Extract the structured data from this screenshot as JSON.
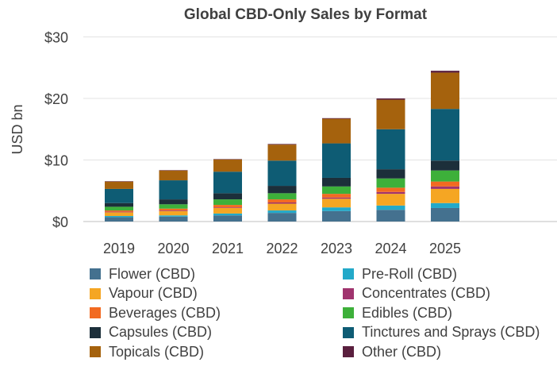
{
  "chart_data": {
    "type": "bar",
    "stacked": true,
    "title": "Global CBD-Only Sales by Format",
    "xlabel": "",
    "ylabel": "USD bn",
    "ylim": [
      0,
      30
    ],
    "yticks": [
      {
        "value": 0,
        "label": "$0"
      },
      {
        "value": 10,
        "label": "$10"
      },
      {
        "value": 20,
        "label": "$20"
      },
      {
        "value": 30,
        "label": "$30"
      }
    ],
    "grid": true,
    "legend_position": "bottom",
    "categories": [
      "2019",
      "2020",
      "2021",
      "2022",
      "2023",
      "2024",
      "2025"
    ],
    "series": [
      {
        "name": "Flower (CBD)",
        "color": "#44718f",
        "values": [
          0.7,
          0.8,
          1.0,
          1.4,
          1.7,
          1.9,
          2.2
        ]
      },
      {
        "name": "Pre-Roll (CBD)",
        "color": "#23a9c9",
        "values": [
          0.2,
          0.2,
          0.3,
          0.4,
          0.6,
          0.7,
          0.8
        ]
      },
      {
        "name": "Vapour (CBD)",
        "color": "#f5a623",
        "values": [
          0.6,
          0.7,
          0.9,
          1.1,
          1.4,
          1.9,
          2.3
        ]
      },
      {
        "name": "Concentrates (CBD)",
        "color": "#a0346e",
        "values": [
          0.1,
          0.1,
          0.1,
          0.2,
          0.2,
          0.3,
          0.4
        ]
      },
      {
        "name": "Beverages (CBD)",
        "color": "#f26a21",
        "values": [
          0.2,
          0.3,
          0.4,
          0.5,
          0.6,
          0.7,
          0.8
        ]
      },
      {
        "name": "Edibles (CBD)",
        "color": "#3db03a",
        "values": [
          0.6,
          0.7,
          0.9,
          1.0,
          1.2,
          1.5,
          1.8
        ]
      },
      {
        "name": "Capsules (CBD)",
        "color": "#1c2f3a",
        "values": [
          0.6,
          0.8,
          1.0,
          1.2,
          1.4,
          1.5,
          1.6
        ]
      },
      {
        "name": "Tinctures and Sprays (CBD)",
        "color": "#0e5c74",
        "values": [
          2.3,
          3.1,
          3.5,
          4.1,
          5.6,
          6.5,
          8.4
        ]
      },
      {
        "name": "Topicals (CBD)",
        "color": "#a5620d",
        "values": [
          1.2,
          1.6,
          2.0,
          2.6,
          4.0,
          4.8,
          5.9
        ]
      },
      {
        "name": "Other (CBD)",
        "color": "#5a1f3e",
        "values": [
          0.05,
          0.05,
          0.05,
          0.1,
          0.1,
          0.2,
          0.3
        ]
      }
    ]
  }
}
